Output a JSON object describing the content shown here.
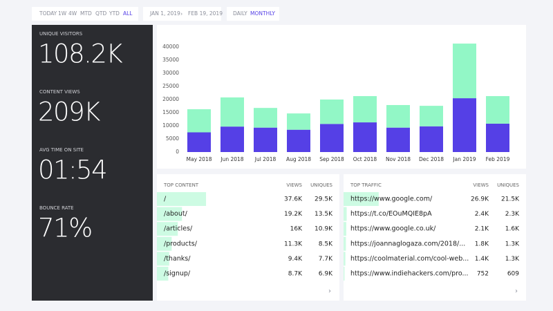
{
  "toolbar": {
    "ranges": [
      "TODAY",
      "1W",
      "4W",
      "MTD",
      "QTD",
      "YTD",
      "ALL"
    ],
    "active_range": 6,
    "date_start": "JAN 1, 2019",
    "date_separator": "›",
    "date_end": "FEB 19, 2019",
    "intervals": [
      "DAILY",
      "MONTHLY"
    ],
    "active_interval": 1
  },
  "metrics": [
    {
      "label": "UNIQUE VISITORS",
      "value": "108.2K"
    },
    {
      "label": "CONTENT VIEWS",
      "value": "209K"
    },
    {
      "label": "AVG TIME ON SITE",
      "value": "01:54"
    },
    {
      "label": "BOUNCE RATE",
      "value": "71%"
    }
  ],
  "chart": {
    "type": "bar",
    "stacked": true,
    "categories": [
      "May 2018",
      "Jun 2018",
      "Jul 2018",
      "Aug 2018",
      "Sep 2018",
      "Oct 2018",
      "Nov 2018",
      "Dec 2018",
      "Jan 2019",
      "Feb 2019"
    ],
    "series": [
      {
        "color": "#5540e6",
        "values": [
          7500,
          9700,
          9300,
          8500,
          10700,
          11300,
          9300,
          9800,
          20500,
          10800
        ]
      },
      {
        "color": "#92f7c6",
        "values": [
          8800,
          11100,
          7500,
          6200,
          9300,
          10000,
          8600,
          7800,
          20800,
          10500
        ]
      }
    ],
    "ylim": [
      0,
      45000
    ],
    "yticks": [
      0,
      5000,
      10000,
      15000,
      20000,
      25000,
      30000,
      35000,
      40000
    ]
  },
  "top_content": {
    "title": "TOP CONTENT",
    "columns": [
      "VIEWS",
      "UNIQUES"
    ],
    "more": "›",
    "rows": [
      {
        "path": "/",
        "views": {
          "value": 37600,
          "label": "37.6K"
        },
        "uniques": {
          "value": 29500,
          "label": "29.5K"
        }
      },
      {
        "path": "/about/",
        "views": {
          "value": 19200,
          "label": "19.2K"
        },
        "uniques": {
          "value": 13500,
          "label": "13.5K"
        }
      },
      {
        "path": "/articles/",
        "views": {
          "value": 16000,
          "label": "16K"
        },
        "uniques": {
          "value": 10900,
          "label": "10.9K"
        }
      },
      {
        "path": "/products/",
        "views": {
          "value": 11300,
          "label": "11.3K"
        },
        "uniques": {
          "value": 8500,
          "label": "8.5K"
        }
      },
      {
        "path": "/thanks/",
        "views": {
          "value": 9400,
          "label": "9.4K"
        },
        "uniques": {
          "value": 7700,
          "label": "7.7K"
        }
      },
      {
        "path": "/signup/",
        "views": {
          "value": 8700,
          "label": "8.7K"
        },
        "uniques": {
          "value": 6900,
          "label": "6.9K"
        }
      }
    ]
  },
  "top_traffic": {
    "title": "TOP TRAFFIC",
    "columns": [
      "VIEWS",
      "UNIQUES"
    ],
    "more": "›",
    "rows": [
      {
        "path": "https://www.google.com/",
        "views": {
          "value": 26900,
          "label": "26.9K"
        },
        "uniques": {
          "value": 21500,
          "label": "21.5K"
        }
      },
      {
        "path": "https://t.co/EOuMQIE8pA",
        "views": {
          "value": 2400,
          "label": "2.4K"
        },
        "uniques": {
          "value": 2300,
          "label": "2.3K"
        }
      },
      {
        "path": "https://www.google.co.uk/",
        "views": {
          "value": 2100,
          "label": "2.1K"
        },
        "uniques": {
          "value": 1600,
          "label": "1.6K"
        }
      },
      {
        "path": "https://joannaglogaza.com/2018/...",
        "views": {
          "value": 1800,
          "label": "1.8K"
        },
        "uniques": {
          "value": 1300,
          "label": "1.3K"
        }
      },
      {
        "path": "https://coolmaterial.com/cool-web...",
        "views": {
          "value": 1400,
          "label": "1.4K"
        },
        "uniques": {
          "value": 1300,
          "label": "1.3K"
        }
      },
      {
        "path": "https://www.indiehackers.com/pro...",
        "views": 752,
        "uniques": 609
      }
    ]
  }
}
